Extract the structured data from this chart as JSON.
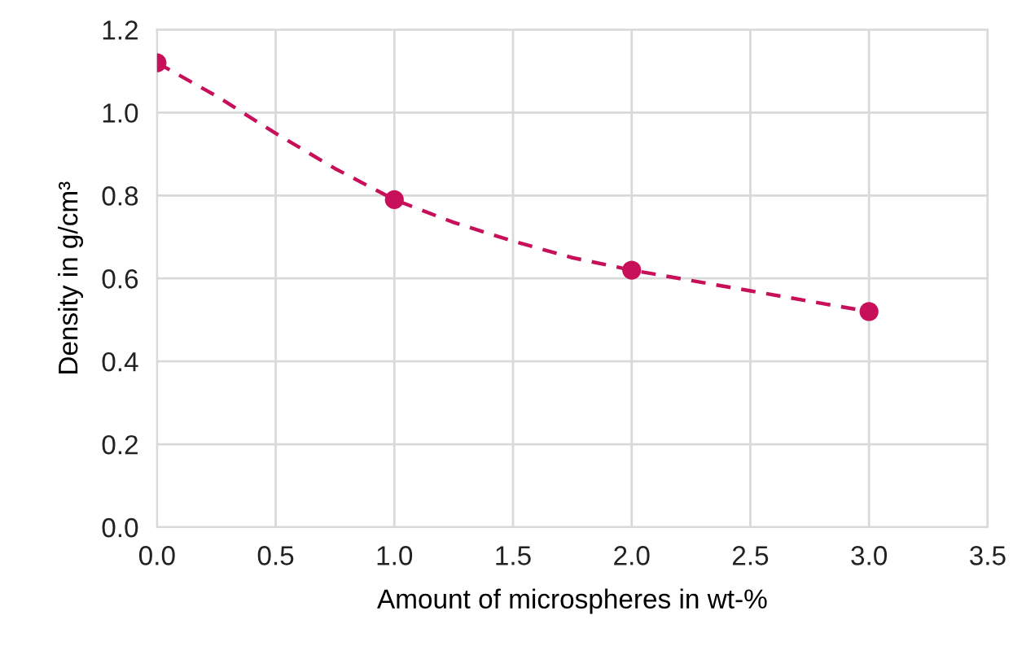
{
  "chart_data": {
    "type": "scatter",
    "xlabel": "Amount of microspheres in wt-%",
    "ylabel": "Density in g/cm³",
    "x": [
      0,
      1,
      2,
      3
    ],
    "series": [
      {
        "color": "#c8105a",
        "values": [
          1.12,
          0.79,
          0.62,
          0.52
        ],
        "marker": "circle"
      },
      {
        "type": "line",
        "color": "#c8105a",
        "line_style": "dashed",
        "marker": "none",
        "x": [
          0,
          0.25,
          0.5,
          0.75,
          1,
          1.25,
          1.5,
          1.75,
          2,
          2.25,
          2.5,
          2.75,
          3
        ],
        "values": [
          1.12,
          1.04,
          0.95,
          0.865,
          0.79,
          0.735,
          0.69,
          0.65,
          0.62,
          0.595,
          0.57,
          0.545,
          0.52
        ]
      }
    ],
    "grid": true,
    "xlim": [
      0,
      3.5
    ],
    "xticks": [
      {
        "value": 0,
        "label": "0.0"
      },
      {
        "value": 0.5,
        "label": "0.5"
      },
      {
        "value": 1,
        "label": "1.0"
      },
      {
        "value": 1.5,
        "label": "1.5"
      },
      {
        "value": 2,
        "label": "2.0"
      },
      {
        "value": 2.5,
        "label": "2.5"
      },
      {
        "value": 3,
        "label": "3.0"
      },
      {
        "value": 3.5,
        "label": "3.5"
      }
    ],
    "ylim": [
      0,
      1.2
    ],
    "yticks": [
      {
        "value": 0,
        "label": "0.0"
      },
      {
        "value": 0.2,
        "label": "0.2"
      },
      {
        "value": 0.4,
        "label": "0.4"
      },
      {
        "value": 0.6,
        "label": "0.6"
      },
      {
        "value": 0.8,
        "label": "0.8"
      },
      {
        "value": 1,
        "label": "1.0"
      },
      {
        "value": 1.2,
        "label": "1.2"
      }
    ]
  }
}
